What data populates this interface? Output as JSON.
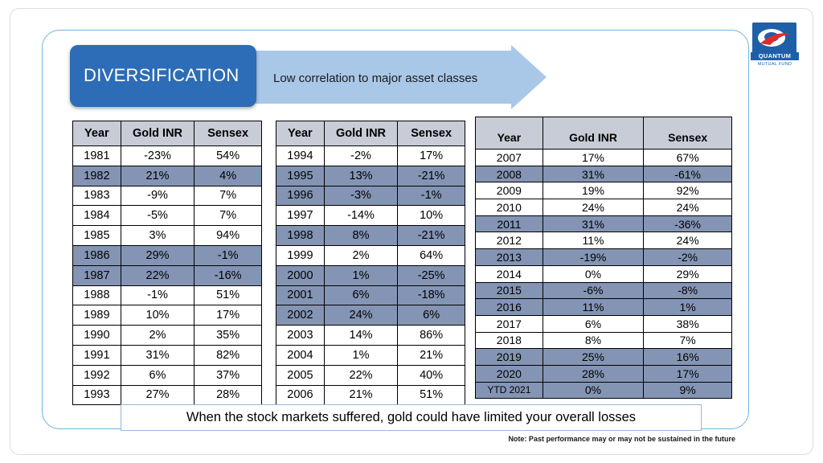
{
  "title": "DIVERSIFICATION",
  "subtitle": "Low correlation to major asset classes",
  "logo": {
    "brand": "QUANTUM",
    "sub": "MUTUAL FUND"
  },
  "colors": {
    "title_box": "#2d6cb6",
    "arrow": "#a9c8e8",
    "row_band": "#8494b4",
    "header": "#c8ccd6",
    "frame": "#6fb4dd"
  },
  "columns": [
    "Year",
    "Gold INR",
    "Sensex"
  ],
  "table1": [
    {
      "year": "1981",
      "gold": "-23%",
      "sensex": "54%",
      "band": false
    },
    {
      "year": "1982",
      "gold": "21%",
      "sensex": "4%",
      "band": true
    },
    {
      "year": "1983",
      "gold": "-9%",
      "sensex": "7%",
      "band": false
    },
    {
      "year": "1984",
      "gold": "-5%",
      "sensex": "7%",
      "band": false
    },
    {
      "year": "1985",
      "gold": "3%",
      "sensex": "94%",
      "band": false
    },
    {
      "year": "1986",
      "gold": "29%",
      "sensex": "-1%",
      "band": true
    },
    {
      "year": "1987",
      "gold": "22%",
      "sensex": "-16%",
      "band": true
    },
    {
      "year": "1988",
      "gold": "-1%",
      "sensex": "51%",
      "band": false
    },
    {
      "year": "1989",
      "gold": "10%",
      "sensex": "17%",
      "band": false
    },
    {
      "year": "1990",
      "gold": "2%",
      "sensex": "35%",
      "band": false
    },
    {
      "year": "1991",
      "gold": "31%",
      "sensex": "82%",
      "band": false
    },
    {
      "year": "1992",
      "gold": "6%",
      "sensex": "37%",
      "band": false
    },
    {
      "year": "1993",
      "gold": "27%",
      "sensex": "28%",
      "band": false
    }
  ],
  "table2": [
    {
      "year": "1994",
      "gold": "-2%",
      "sensex": "17%",
      "band": false
    },
    {
      "year": "1995",
      "gold": "13%",
      "sensex": "-21%",
      "band": true
    },
    {
      "year": "1996",
      "gold": "-3%",
      "sensex": "-1%",
      "band": true
    },
    {
      "year": "1997",
      "gold": "-14%",
      "sensex": "10%",
      "band": false
    },
    {
      "year": "1998",
      "gold": "8%",
      "sensex": "-21%",
      "band": true
    },
    {
      "year": "1999",
      "gold": "2%",
      "sensex": "64%",
      "band": false
    },
    {
      "year": "2000",
      "gold": "1%",
      "sensex": "-25%",
      "band": true
    },
    {
      "year": "2001",
      "gold": "6%",
      "sensex": "-18%",
      "band": true
    },
    {
      "year": "2002",
      "gold": "24%",
      "sensex": "6%",
      "band": true
    },
    {
      "year": "2003",
      "gold": "14%",
      "sensex": "86%",
      "band": false
    },
    {
      "year": "2004",
      "gold": "1%",
      "sensex": "21%",
      "band": false
    },
    {
      "year": "2005",
      "gold": "22%",
      "sensex": "40%",
      "band": false
    },
    {
      "year": "2006",
      "gold": "21%",
      "sensex": "51%",
      "band": false
    }
  ],
  "table3": [
    {
      "year": "2007",
      "gold": "17%",
      "sensex": "67%",
      "band": false
    },
    {
      "year": "2008",
      "gold": "31%",
      "sensex": "-61%",
      "band": true
    },
    {
      "year": "2009",
      "gold": "19%",
      "sensex": "92%",
      "band": false
    },
    {
      "year": "2010",
      "gold": "24%",
      "sensex": "24%",
      "band": false
    },
    {
      "year": "2011",
      "gold": "31%",
      "sensex": "-36%",
      "band": true
    },
    {
      "year": "2012",
      "gold": "11%",
      "sensex": "24%",
      "band": false
    },
    {
      "year": "2013",
      "gold": "-19%",
      "sensex": "-2%",
      "band": true
    },
    {
      "year": "2014",
      "gold": "0%",
      "sensex": "29%",
      "band": false
    },
    {
      "year": "2015",
      "gold": "-6%",
      "sensex": "-8%",
      "band": true
    },
    {
      "year": "2016",
      "gold": "11%",
      "sensex": "1%",
      "band": true
    },
    {
      "year": "2017",
      "gold": "6%",
      "sensex": "38%",
      "band": false
    },
    {
      "year": "2018",
      "gold": "8%",
      "sensex": "7%",
      "band": false
    },
    {
      "year": "2019",
      "gold": "25%",
      "sensex": "16%",
      "band": true
    },
    {
      "year": "2020",
      "gold": "28%",
      "sensex": "17%",
      "band": true
    },
    {
      "year": "YTD 2021",
      "gold": "0%",
      "sensex": "9%",
      "band": true
    }
  ],
  "conclusion": "When the stock markets suffered, gold could have limited your overall losses",
  "note": "Note: Past performance may or may not be sustained in the future"
}
